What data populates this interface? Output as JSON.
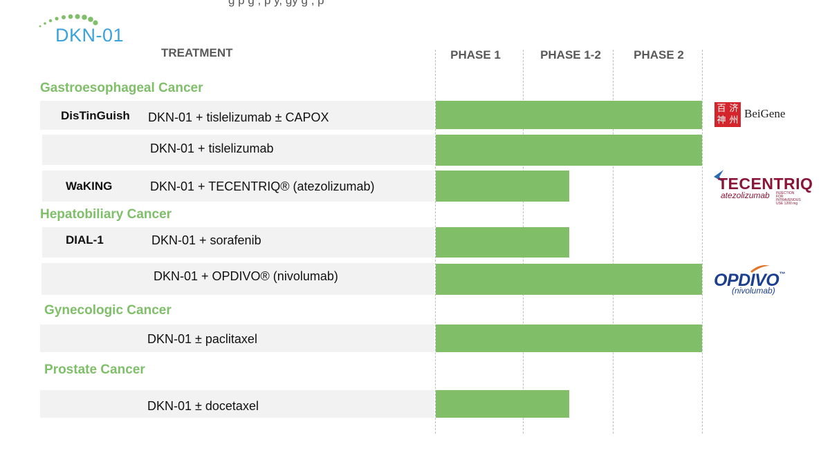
{
  "header": {
    "top_text": "g        p  g  ,     p        y, gy         g ,      p",
    "logo_text": "DKN-01",
    "treatment_label": "TREATMENT",
    "brand_green": "#80bf67",
    "section_green": "#7fbf6a"
  },
  "chart_data": {
    "type": "bar",
    "orientation": "horizontal",
    "stages": [
      "PHASE 1",
      "PHASE 1-2",
      "PHASE 2"
    ],
    "sections": [
      {
        "name": "Gastroesophageal Cancer",
        "rows": [
          {
            "trial": "DisTinGuish",
            "treatment": "DKN-01 + tislelizumab ± CAPOX",
            "progress": 1.0,
            "partner": "BeiGene"
          },
          {
            "trial": "",
            "treatment": "DKN-01 + tislelizumab",
            "progress": 1.0,
            "partner": ""
          },
          {
            "trial": "WaKING",
            "treatment": "DKN-01 + TECENTRIQ® (atezolizumab)",
            "progress": 0.5,
            "partner": "TECENTRIQ"
          }
        ]
      },
      {
        "name": "Hepatobiliary Cancer",
        "rows": [
          {
            "trial": "DIAL-1",
            "treatment": "DKN-01 + sorafenib",
            "progress": 0.5,
            "partner": ""
          },
          {
            "trial": "",
            "treatment": "DKN-01 + OPDIVO® (nivolumab)",
            "progress": 1.0,
            "partner": "OPDIVO"
          }
        ]
      },
      {
        "name": "Gynecologic Cancer",
        "rows": [
          {
            "trial": "",
            "treatment": "DKN-01 ± paclitaxel",
            "progress": 1.0,
            "partner": ""
          }
        ]
      },
      {
        "name": "Prostate Cancer",
        "rows": [
          {
            "trial": "",
            "treatment": "DKN-01 ± docetaxel",
            "progress": 0.5,
            "partner": ""
          }
        ]
      }
    ]
  },
  "partners": {
    "beigene_seal": [
      "百",
      "济",
      "神",
      "州"
    ],
    "beigene_name": "BeiGene",
    "tecentriq_name": "TECENTRIQ",
    "tecentriq_generic": "atezolizumab",
    "tecentriq_small": "INJECTION FOR INTRAVENOUS USE 1200 mg",
    "opdivo_name": "OPDIVO",
    "opdivo_tm": "™",
    "opdivo_generic": "(nivolumab)"
  }
}
